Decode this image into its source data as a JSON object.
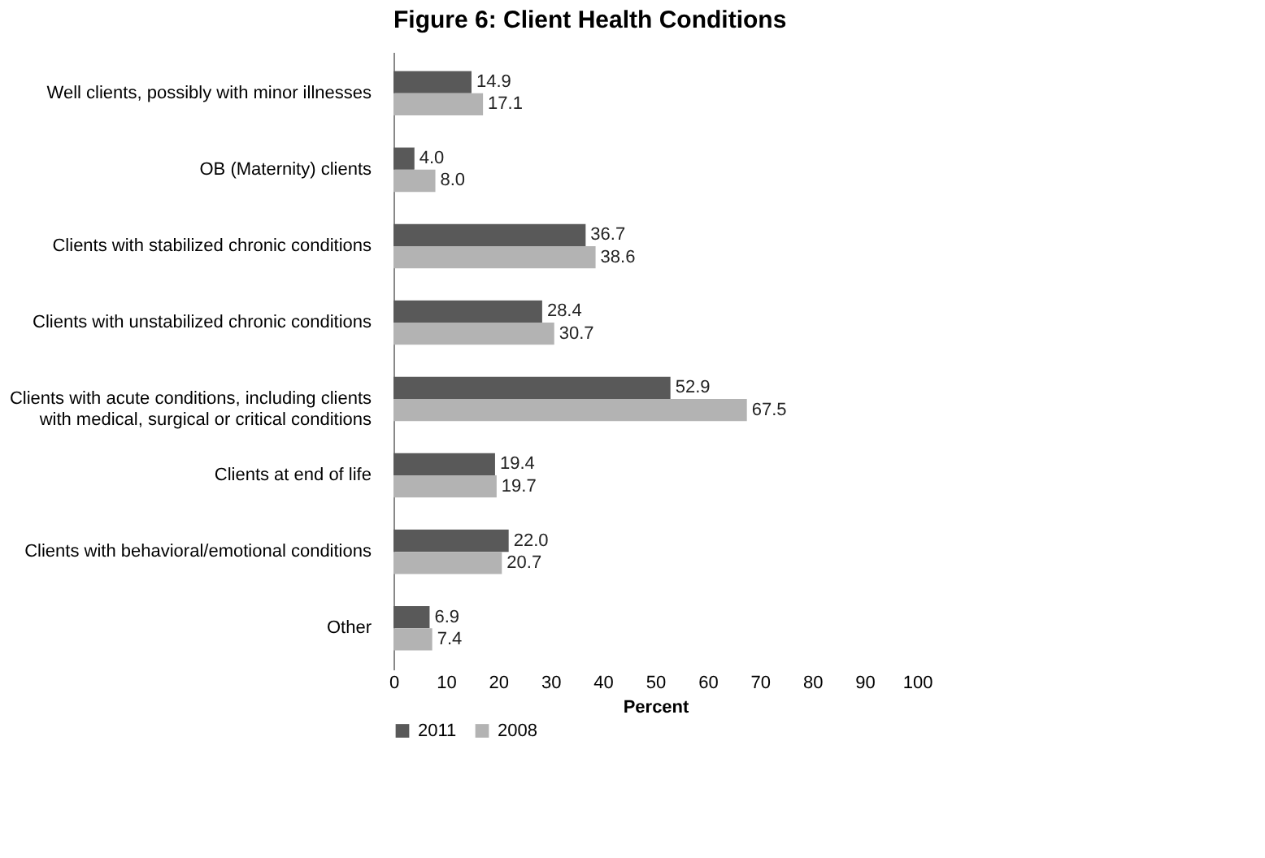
{
  "chart_data": {
    "type": "bar",
    "orientation": "horizontal",
    "title": "Figure 6: Client Health Conditions",
    "xlabel": "Percent",
    "categories": [
      "Well clients, possibly with minor illnesses",
      "OB (Maternity) clients",
      "Clients with stabilized chronic conditions",
      "Clients with unstabilized chronic conditions",
      "Clients with acute conditions, including clients with medical, surgical or critical conditions",
      "Clients at end of life",
      "Clients with behavioral/emotional conditions",
      "Other"
    ],
    "series": [
      {
        "name": "2011",
        "color": "#595959",
        "values": [
          14.9,
          4.0,
          36.7,
          28.4,
          52.9,
          19.4,
          22.0,
          6.9
        ],
        "value_labels": [
          "14.9",
          "4.0",
          "36.7",
          "28.4",
          "52.9",
          "19.4",
          "22.0",
          "6.9"
        ]
      },
      {
        "name": "2008",
        "color": "#b3b3b3",
        "values": [
          17.1,
          8.0,
          38.6,
          30.7,
          67.5,
          19.7,
          20.7,
          7.4
        ],
        "value_labels": [
          "17.1",
          "8.0",
          "38.6",
          "30.7",
          "67.5",
          "19.7",
          "20.7",
          "7.4"
        ]
      }
    ],
    "xlim": [
      0,
      100
    ],
    "xticks": [
      0,
      10,
      20,
      30,
      40,
      50,
      60,
      70,
      80,
      90,
      100
    ],
    "legend": "bottom",
    "grid": false
  }
}
